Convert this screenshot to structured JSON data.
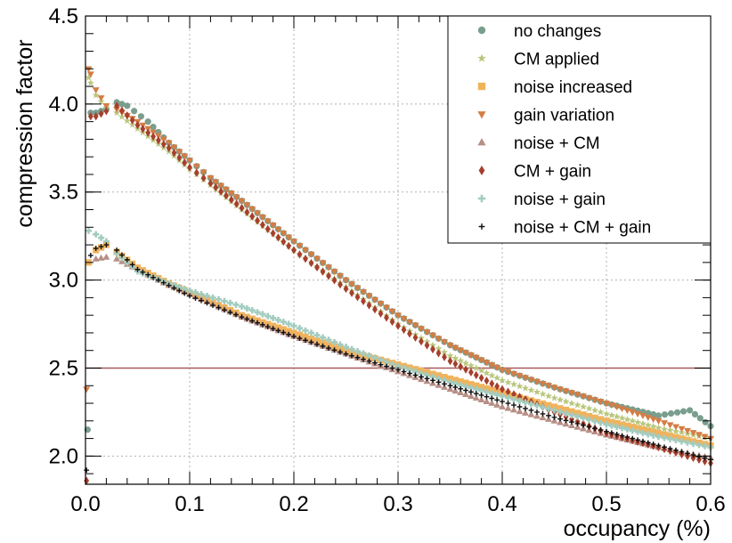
{
  "chart_data": {
    "type": "scatter",
    "xlabel": "occupancy (%)",
    "ylabel": "compression factor",
    "xlim": [
      0.0,
      0.6
    ],
    "ylim": [
      1.84,
      4.5
    ],
    "x_ticks": [
      0.0,
      0.1,
      0.2,
      0.3,
      0.4,
      0.5,
      0.6
    ],
    "x_tick_labels": [
      "0.0",
      "0.1",
      "0.2",
      "0.3",
      "0.4",
      "0.5",
      "0.6"
    ],
    "y_ticks": [
      2.0,
      2.5,
      3.0,
      3.5,
      4.0,
      4.5
    ],
    "y_tick_labels": [
      "2.0",
      "2.5",
      "3.0",
      "3.5",
      "4.0",
      "4.5"
    ],
    "grid": true,
    "legend_position": "top-right",
    "reference_line": {
      "y": 2.5,
      "color": "#a85a5a"
    },
    "series": [
      {
        "name": "no changes",
        "color": "#7a9e8e",
        "marker": "circle",
        "x": [
          0.002,
          0.005,
          0.01,
          0.02,
          0.03,
          0.04,
          0.06,
          0.08,
          0.1,
          0.12,
          0.15,
          0.2,
          0.25,
          0.3,
          0.35,
          0.4,
          0.45,
          0.5,
          0.55,
          0.58,
          0.6
        ],
        "y": [
          2.15,
          3.95,
          3.95,
          3.97,
          4.01,
          3.99,
          3.9,
          3.78,
          3.68,
          3.58,
          3.45,
          3.22,
          3.0,
          2.8,
          2.63,
          2.49,
          2.39,
          2.3,
          2.23,
          2.26,
          2.17
        ]
      },
      {
        "name": "CM applied",
        "color": "#b9c77e",
        "marker": "star",
        "x": [
          0.003,
          0.005,
          0.01,
          0.02,
          0.03,
          0.05,
          0.08,
          0.1,
          0.12,
          0.15,
          0.2,
          0.25,
          0.3,
          0.35,
          0.4,
          0.45,
          0.5,
          0.55,
          0.6
        ],
        "y": [
          4.15,
          4.12,
          4.05,
          3.98,
          3.95,
          3.86,
          3.73,
          3.63,
          3.54,
          3.4,
          3.17,
          2.96,
          2.75,
          2.57,
          2.43,
          2.33,
          2.24,
          2.16,
          2.1
        ]
      },
      {
        "name": "noise increased",
        "color": "#f0b35c",
        "marker": "square",
        "x": [
          0.003,
          0.01,
          0.02,
          0.03,
          0.05,
          0.08,
          0.1,
          0.15,
          0.2,
          0.25,
          0.3,
          0.35,
          0.4,
          0.45,
          0.5,
          0.55,
          0.6
        ],
        "y": [
          3.1,
          3.17,
          3.2,
          3.16,
          3.07,
          2.98,
          2.93,
          2.8,
          2.7,
          2.6,
          2.52,
          2.44,
          2.36,
          2.28,
          2.2,
          2.13,
          2.06
        ]
      },
      {
        "name": "gain variation",
        "color": "#d47d45",
        "marker": "triangle-down",
        "x": [
          0.001,
          0.003,
          0.005,
          0.01,
          0.02,
          0.03,
          0.05,
          0.08,
          0.1,
          0.12,
          0.15,
          0.2,
          0.25,
          0.3,
          0.35,
          0.4,
          0.45,
          0.5,
          0.55,
          0.6
        ],
        "y": [
          2.38,
          4.2,
          4.17,
          4.08,
          3.99,
          3.97,
          3.9,
          3.78,
          3.68,
          3.58,
          3.45,
          3.22,
          3.0,
          2.8,
          2.63,
          2.49,
          2.39,
          2.3,
          2.2,
          2.1
        ]
      },
      {
        "name": "noise + CM",
        "color": "#b78f86",
        "marker": "triangle-up",
        "x": [
          0.01,
          0.02,
          0.03,
          0.05,
          0.08,
          0.1,
          0.15,
          0.2,
          0.25,
          0.3,
          0.35,
          0.4,
          0.45,
          0.5,
          0.55,
          0.6
        ],
        "y": [
          3.12,
          3.13,
          3.12,
          3.06,
          2.97,
          2.92,
          2.79,
          2.68,
          2.58,
          2.48,
          2.38,
          2.28,
          2.2,
          2.12,
          2.05,
          1.99
        ]
      },
      {
        "name": "CM + gain",
        "color": "#a63f2d",
        "marker": "diamond",
        "x": [
          0.001,
          0.005,
          0.01,
          0.02,
          0.03,
          0.05,
          0.08,
          0.1,
          0.12,
          0.15,
          0.2,
          0.25,
          0.3,
          0.35,
          0.4,
          0.45,
          0.5,
          0.55,
          0.6
        ],
        "y": [
          1.86,
          3.93,
          3.93,
          3.96,
          3.99,
          3.88,
          3.75,
          3.64,
          3.55,
          3.41,
          3.17,
          2.95,
          2.74,
          2.54,
          2.38,
          2.25,
          2.13,
          2.05,
          1.96
        ]
      },
      {
        "name": "noise + gain",
        "color": "#a3ccc0",
        "marker": "plus-thick",
        "x": [
          0.003,
          0.01,
          0.02,
          0.03,
          0.05,
          0.08,
          0.1,
          0.15,
          0.2,
          0.25,
          0.3,
          0.35,
          0.4,
          0.45,
          0.5,
          0.55,
          0.6
        ],
        "y": [
          3.28,
          3.26,
          3.22,
          3.15,
          3.05,
          2.98,
          2.94,
          2.85,
          2.74,
          2.62,
          2.51,
          2.42,
          2.34,
          2.26,
          2.18,
          2.11,
          2.05
        ]
      },
      {
        "name": "noise + CM + gain",
        "color": "#111111",
        "marker": "plus",
        "x": [
          0.001,
          0.005,
          0.01,
          0.02,
          0.03,
          0.05,
          0.08,
          0.1,
          0.15,
          0.2,
          0.25,
          0.3,
          0.35,
          0.4,
          0.45,
          0.5,
          0.55,
          0.6
        ],
        "y": [
          1.92,
          3.14,
          3.18,
          3.2,
          3.17,
          3.06,
          2.97,
          2.91,
          2.79,
          2.68,
          2.58,
          2.49,
          2.4,
          2.31,
          2.22,
          2.14,
          2.06,
          1.98
        ]
      }
    ]
  }
}
